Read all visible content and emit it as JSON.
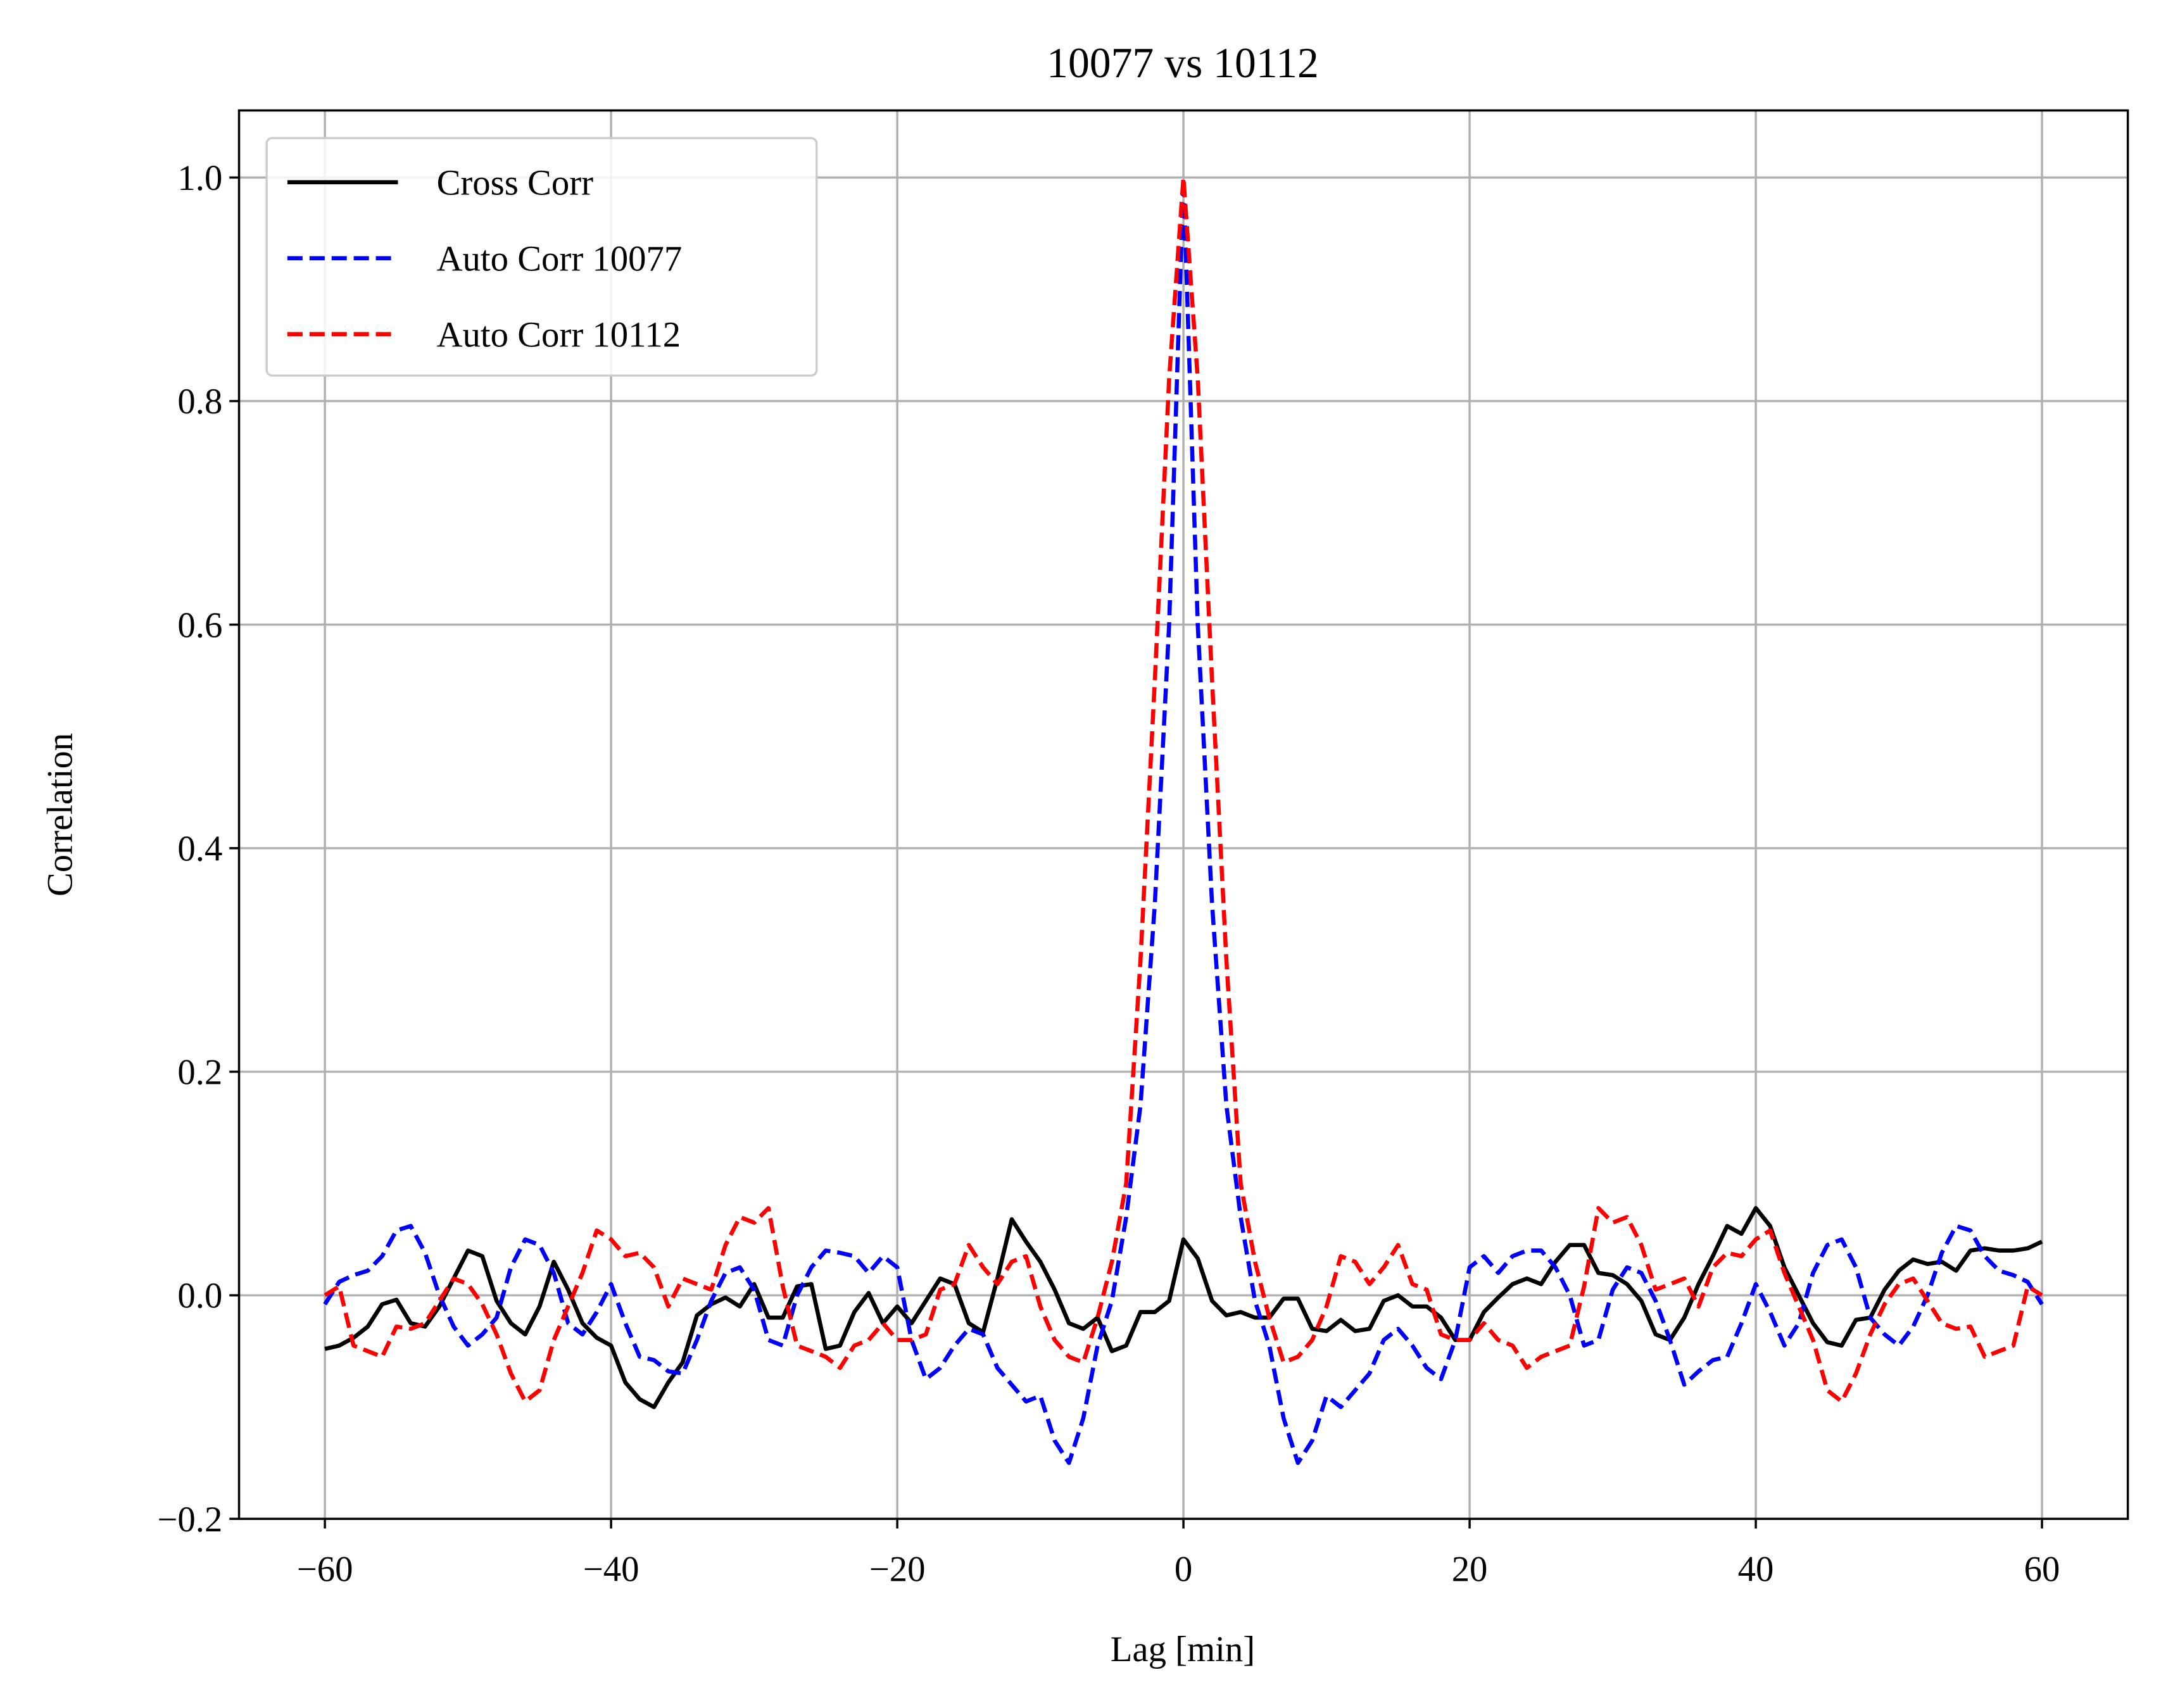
{
  "chart_data": {
    "type": "line",
    "title": "10077 vs 10112",
    "xlabel": "Lag [min]",
    "ylabel": "Correlation",
    "x": [
      -60,
      -59,
      -58,
      -57,
      -56,
      -55,
      -54,
      -53,
      -52,
      -51,
      -50,
      -49,
      -48,
      -47,
      -46,
      -45,
      -44,
      -43,
      -42,
      -41,
      -40,
      -39,
      -38,
      -37,
      -36,
      -35,
      -34,
      -33,
      -32,
      -31,
      -30,
      -29,
      -28,
      -27,
      -26,
      -25,
      -24,
      -23,
      -22,
      -21,
      -20,
      -19,
      -18,
      -17,
      -16,
      -15,
      -14,
      -13,
      -12,
      -11,
      -10,
      -9,
      -8,
      -7,
      -6,
      -5,
      -4,
      -3,
      -2,
      -1,
      0,
      1,
      2,
      3,
      4,
      5,
      6,
      7,
      8,
      9,
      10,
      11,
      12,
      13,
      14,
      15,
      16,
      17,
      18,
      19,
      20,
      21,
      22,
      23,
      24,
      25,
      26,
      27,
      28,
      29,
      30,
      31,
      32,
      33,
      34,
      35,
      36,
      37,
      38,
      39,
      40,
      41,
      42,
      43,
      44,
      45,
      46,
      47,
      48,
      49,
      50,
      51,
      52,
      53,
      54,
      55,
      56,
      57,
      58,
      59,
      60
    ],
    "series": [
      {
        "name": "Cross Corr",
        "color": "#000000",
        "dash": "solid",
        "values": [
          -0.048,
          -0.045,
          -0.038,
          -0.028,
          -0.008,
          -0.004,
          -0.025,
          -0.028,
          -0.01,
          0.015,
          0.04,
          0.035,
          -0.005,
          -0.025,
          -0.035,
          -0.01,
          0.03,
          0.005,
          -0.025,
          -0.038,
          -0.045,
          -0.078,
          -0.093,
          -0.1,
          -0.078,
          -0.06,
          -0.018,
          -0.008,
          -0.002,
          -0.01,
          0.01,
          -0.02,
          -0.02,
          0.008,
          0.01,
          -0.048,
          -0.045,
          -0.015,
          0.002,
          -0.025,
          -0.01,
          -0.025,
          -0.005,
          0.015,
          0.01,
          -0.025,
          -0.033,
          0.015,
          0.068,
          0.048,
          0.03,
          0.005,
          -0.025,
          -0.03,
          -0.02,
          -0.05,
          -0.045,
          -0.015,
          -0.015,
          -0.005,
          0.05,
          0.033,
          -0.005,
          -0.018,
          -0.015,
          -0.02,
          -0.02,
          -0.003,
          -0.003,
          -0.03,
          -0.032,
          -0.022,
          -0.032,
          -0.03,
          -0.005,
          0.0,
          -0.01,
          -0.01,
          -0.02,
          -0.04,
          -0.04,
          -0.015,
          -0.002,
          0.01,
          0.015,
          0.01,
          0.03,
          0.045,
          0.045,
          0.02,
          0.018,
          0.01,
          -0.005,
          -0.035,
          -0.04,
          -0.02,
          0.01,
          0.035,
          0.062,
          0.055,
          0.078,
          0.062,
          0.025,
          0.0,
          -0.025,
          -0.042,
          -0.045,
          -0.022,
          -0.02,
          0.005,
          0.022,
          0.032,
          0.028,
          0.03,
          0.022,
          0.04,
          0.042,
          0.04,
          0.04,
          0.042,
          0.048
        ]
      },
      {
        "name": "Auto Corr 10077",
        "color": "#0000ff",
        "dash": "dashed",
        "values": [
          -0.008,
          0.012,
          0.018,
          0.022,
          0.035,
          0.058,
          0.062,
          0.038,
          0.0,
          -0.028,
          -0.045,
          -0.035,
          -0.02,
          0.025,
          0.05,
          0.045,
          0.02,
          -0.025,
          -0.035,
          -0.015,
          0.01,
          -0.025,
          -0.055,
          -0.058,
          -0.068,
          -0.07,
          -0.04,
          -0.005,
          0.02,
          0.025,
          0.005,
          -0.04,
          -0.045,
          0.0,
          0.025,
          0.04,
          0.038,
          0.035,
          0.02,
          0.035,
          0.025,
          -0.04,
          -0.075,
          -0.065,
          -0.045,
          -0.03,
          -0.035,
          -0.065,
          -0.08,
          -0.095,
          -0.09,
          -0.13,
          -0.15,
          -0.11,
          -0.045,
          -0.005,
          0.07,
          0.17,
          0.35,
          0.6,
          1.0,
          0.6,
          0.35,
          0.17,
          0.07,
          -0.005,
          -0.045,
          -0.11,
          -0.15,
          -0.13,
          -0.09,
          -0.1,
          -0.085,
          -0.07,
          -0.04,
          -0.03,
          -0.045,
          -0.065,
          -0.075,
          -0.04,
          0.025,
          0.035,
          0.02,
          0.035,
          0.04,
          0.04,
          0.025,
          0.0,
          -0.045,
          -0.04,
          0.005,
          0.025,
          0.02,
          -0.005,
          -0.04,
          -0.08,
          -0.068,
          -0.058,
          -0.055,
          -0.025,
          0.01,
          -0.015,
          -0.045,
          -0.025,
          0.02,
          0.045,
          0.05,
          0.025,
          -0.02,
          -0.035,
          -0.045,
          -0.028,
          0.0,
          0.038,
          0.062,
          0.058,
          0.035,
          0.022,
          0.018,
          0.012,
          -0.008
        ]
      },
      {
        "name": "Auto Corr 10112",
        "color": "#ff0000",
        "dash": "dashed",
        "values": [
          0.0,
          0.008,
          -0.045,
          -0.05,
          -0.055,
          -0.028,
          -0.03,
          -0.025,
          -0.005,
          0.015,
          0.01,
          -0.008,
          -0.035,
          -0.07,
          -0.095,
          -0.085,
          -0.04,
          -0.01,
          0.02,
          0.058,
          0.05,
          0.035,
          0.038,
          0.025,
          -0.01,
          0.015,
          0.01,
          0.005,
          0.045,
          0.07,
          0.065,
          0.078,
          0.008,
          -0.045,
          -0.05,
          -0.055,
          -0.065,
          -0.045,
          -0.04,
          -0.025,
          -0.04,
          -0.04,
          -0.035,
          0.005,
          0.01,
          0.045,
          0.025,
          0.01,
          0.03,
          0.035,
          -0.01,
          -0.04,
          -0.055,
          -0.06,
          -0.02,
          0.03,
          0.1,
          0.3,
          0.55,
          0.82,
          1.0,
          0.82,
          0.55,
          0.3,
          0.1,
          0.03,
          -0.02,
          -0.06,
          -0.055,
          -0.04,
          -0.01,
          0.035,
          0.03,
          0.01,
          0.025,
          0.045,
          0.01,
          0.005,
          -0.035,
          -0.04,
          -0.04,
          -0.025,
          -0.04,
          -0.045,
          -0.065,
          -0.055,
          -0.05,
          -0.045,
          0.008,
          0.078,
          0.065,
          0.07,
          0.045,
          0.005,
          0.01,
          0.015,
          -0.01,
          0.025,
          0.038,
          0.035,
          0.05,
          0.058,
          0.02,
          -0.01,
          -0.04,
          -0.085,
          -0.095,
          -0.07,
          -0.035,
          -0.008,
          0.01,
          0.015,
          -0.005,
          -0.025,
          -0.03,
          -0.028,
          -0.055,
          -0.05,
          -0.045,
          0.008,
          0.0
        ]
      }
    ],
    "xlim": [
      -66,
      66
    ],
    "ylim": [
      -0.2,
      1.06
    ],
    "xticks": [
      {
        "value": -60,
        "label": "−60"
      },
      {
        "value": -40,
        "label": "−40"
      },
      {
        "value": -20,
        "label": "−20"
      },
      0,
      20,
      40,
      60
    ],
    "yticks": [
      {
        "value": -0.2,
        "label": "−0.2"
      },
      {
        "value": 0,
        "label": "0.0"
      },
      0.2,
      0.4,
      0.6,
      0.8,
      {
        "value": 1,
        "label": "1.0"
      }
    ],
    "grid": true,
    "legend": "upper left"
  }
}
